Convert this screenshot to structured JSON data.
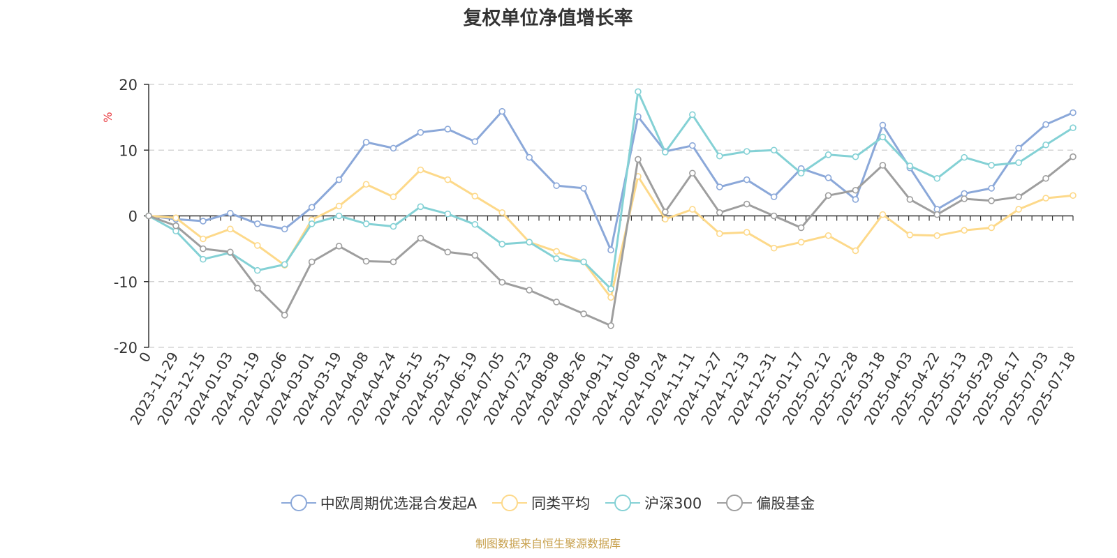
{
  "title": "复权单位净值增长率",
  "source": "制图数据来自恒生聚源数据库",
  "chart_data": {
    "type": "line",
    "title": "复权单位净值增长率",
    "ylabel": "%",
    "xlabel": "",
    "ylim": [
      -20,
      20
    ],
    "yticks": [
      -20,
      -10,
      0,
      10,
      20
    ],
    "grid": true,
    "legend_position": "bottom",
    "categories": [
      "0",
      "2023-11-29",
      "2023-12-15",
      "2024-01-03",
      "2024-01-19",
      "2024-02-06",
      "2024-03-01",
      "2024-03-19",
      "2024-04-08",
      "2024-04-24",
      "2024-05-15",
      "2024-05-31",
      "2024-06-19",
      "2024-07-05",
      "2024-07-23",
      "2024-08-08",
      "2024-08-26",
      "2024-09-11",
      "2024-10-08",
      "2024-10-24",
      "2024-11-11",
      "2024-11-27",
      "2024-12-13",
      "2024-12-31",
      "2025-01-17",
      "2025-02-12",
      "2025-02-28",
      "2025-03-18",
      "2025-04-03",
      "2025-04-22",
      "2025-05-13",
      "2025-05-29",
      "2025-06-17",
      "2025-07-03",
      "2025-07-18"
    ],
    "series": [
      {
        "name": "中欧周期优选混合发起A",
        "color": "#8ba8d9",
        "values": [
          0,
          -0.5,
          -0.8,
          0.4,
          -1.2,
          -2.0,
          1.3,
          5.5,
          11.2,
          10.3,
          12.7,
          13.2,
          11.3,
          15.9,
          8.9,
          4.6,
          4.2,
          -5.2,
          15.1,
          9.8,
          10.7,
          4.4,
          5.5,
          2.9,
          7.2,
          5.8,
          2.5,
          13.8,
          7.3,
          1.0,
          3.4,
          4.2,
          10.3,
          13.9,
          15.7
        ]
      },
      {
        "name": "同类平均",
        "color": "#fdd98a",
        "values": [
          0,
          -0.3,
          -3.5,
          -2.0,
          -4.5,
          -7.5,
          -0.6,
          1.5,
          4.8,
          2.9,
          7.0,
          5.5,
          3.0,
          0.5,
          -4.0,
          -5.4,
          -7.0,
          -12.4,
          6.0,
          -0.5,
          1.0,
          -2.7,
          -2.5,
          -4.9,
          -4.0,
          -3.0,
          -5.3,
          0.2,
          -2.9,
          -3.0,
          -2.2,
          -1.8,
          1.0,
          2.7,
          3.1
        ]
      },
      {
        "name": "沪深300",
        "color": "#84d1d5",
        "values": [
          0,
          -2.3,
          -6.6,
          -5.6,
          -8.3,
          -7.4,
          -1.2,
          0.0,
          -1.2,
          -1.6,
          1.4,
          0.3,
          -1.3,
          -4.3,
          -4.0,
          -6.5,
          -7.0,
          -11.1,
          18.9,
          9.7,
          15.4,
          9.1,
          9.8,
          10.0,
          6.5,
          9.3,
          9.0,
          12.0,
          7.6,
          5.7,
          8.9,
          7.7,
          8.1,
          10.8,
          13.4
        ]
      },
      {
        "name": "偏股基金",
        "color": "#9e9e9e",
        "values": [
          0,
          -1.5,
          -5.0,
          -5.5,
          -11.0,
          -15.1,
          -7.0,
          -4.6,
          -6.9,
          -7.0,
          -3.4,
          -5.5,
          -6.0,
          -10.1,
          -11.3,
          -13.1,
          -14.9,
          -16.7,
          8.6,
          0.6,
          6.5,
          0.5,
          1.8,
          0.0,
          -1.8,
          3.1,
          3.9,
          7.7,
          2.5,
          0.2,
          2.6,
          2.3,
          2.9,
          5.7,
          9.0
        ]
      }
    ]
  }
}
